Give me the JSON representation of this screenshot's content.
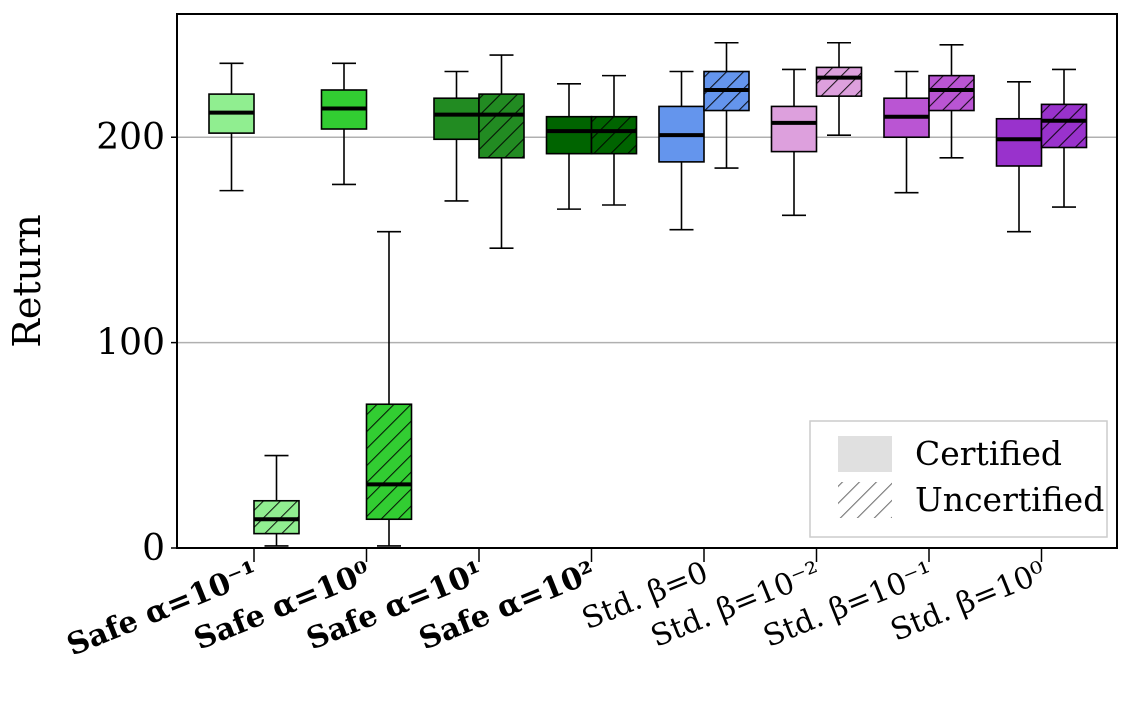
{
  "chart_data": {
    "type": "box",
    "ylabel": "Return",
    "ylim": [
      0,
      260
    ],
    "yticks": [
      0,
      100,
      200
    ],
    "grid": "horizontal",
    "legend": {
      "position": "bottom-right",
      "entries": [
        {
          "label": "Certified",
          "style": "solid"
        },
        {
          "label": "Uncertified",
          "style": "hatched"
        }
      ]
    },
    "categories": [
      {
        "label": "Safe α=10⁻¹",
        "bold": true,
        "color": "#90ee90",
        "certified": {
          "min": 174,
          "q1": 202,
          "median": 212,
          "q3": 221,
          "max": 236
        },
        "uncertified": {
          "min": 1,
          "q1": 7,
          "median": 14,
          "q3": 23,
          "max": 45
        }
      },
      {
        "label": "Safe α=10⁰",
        "bold": true,
        "color": "#32cd32",
        "certified": {
          "min": 177,
          "q1": 204,
          "median": 214,
          "q3": 223,
          "max": 236
        },
        "uncertified": {
          "min": 1,
          "q1": 14,
          "median": 31,
          "q3": 70,
          "max": 154
        }
      },
      {
        "label": "Safe α=10¹",
        "bold": true,
        "color": "#228b22",
        "certified": {
          "min": 169,
          "q1": 199,
          "median": 211,
          "q3": 219,
          "max": 232
        },
        "uncertified": {
          "min": 146,
          "q1": 190,
          "median": 211,
          "q3": 221,
          "max": 240
        }
      },
      {
        "label": "Safe α=10²",
        "bold": true,
        "color": "#006400",
        "certified": {
          "min": 165,
          "q1": 192,
          "median": 203,
          "q3": 210,
          "max": 226
        },
        "uncertified": {
          "min": 167,
          "q1": 192,
          "median": 203,
          "q3": 210,
          "max": 230
        }
      },
      {
        "label": "Std. β=0",
        "bold": false,
        "color": "#6495ed",
        "certified": {
          "min": 155,
          "q1": 188,
          "median": 201,
          "q3": 215,
          "max": 232
        },
        "uncertified": {
          "min": 185,
          "q1": 213,
          "median": 223,
          "q3": 232,
          "max": 246
        }
      },
      {
        "label": "Std. β=10⁻²",
        "bold": false,
        "color": "#dda0dd",
        "certified": {
          "min": 162,
          "q1": 193,
          "median": 207,
          "q3": 215,
          "max": 233
        },
        "uncertified": {
          "min": 201,
          "q1": 220,
          "median": 229,
          "q3": 234,
          "max": 246
        }
      },
      {
        "label": "Std. β=10⁻¹",
        "bold": false,
        "color": "#ba55d3",
        "certified": {
          "min": 173,
          "q1": 200,
          "median": 210,
          "q3": 219,
          "max": 232
        },
        "uncertified": {
          "min": 190,
          "q1": 213,
          "median": 223,
          "q3": 230,
          "max": 245
        }
      },
      {
        "label": "Std. β=10⁰",
        "bold": false,
        "color": "#9932cc",
        "certified": {
          "min": 154,
          "q1": 186,
          "median": 199,
          "q3": 209,
          "max": 227
        },
        "uncertified": {
          "min": 166,
          "q1": 195,
          "median": 208,
          "q3": 216,
          "max": 233
        }
      }
    ]
  }
}
